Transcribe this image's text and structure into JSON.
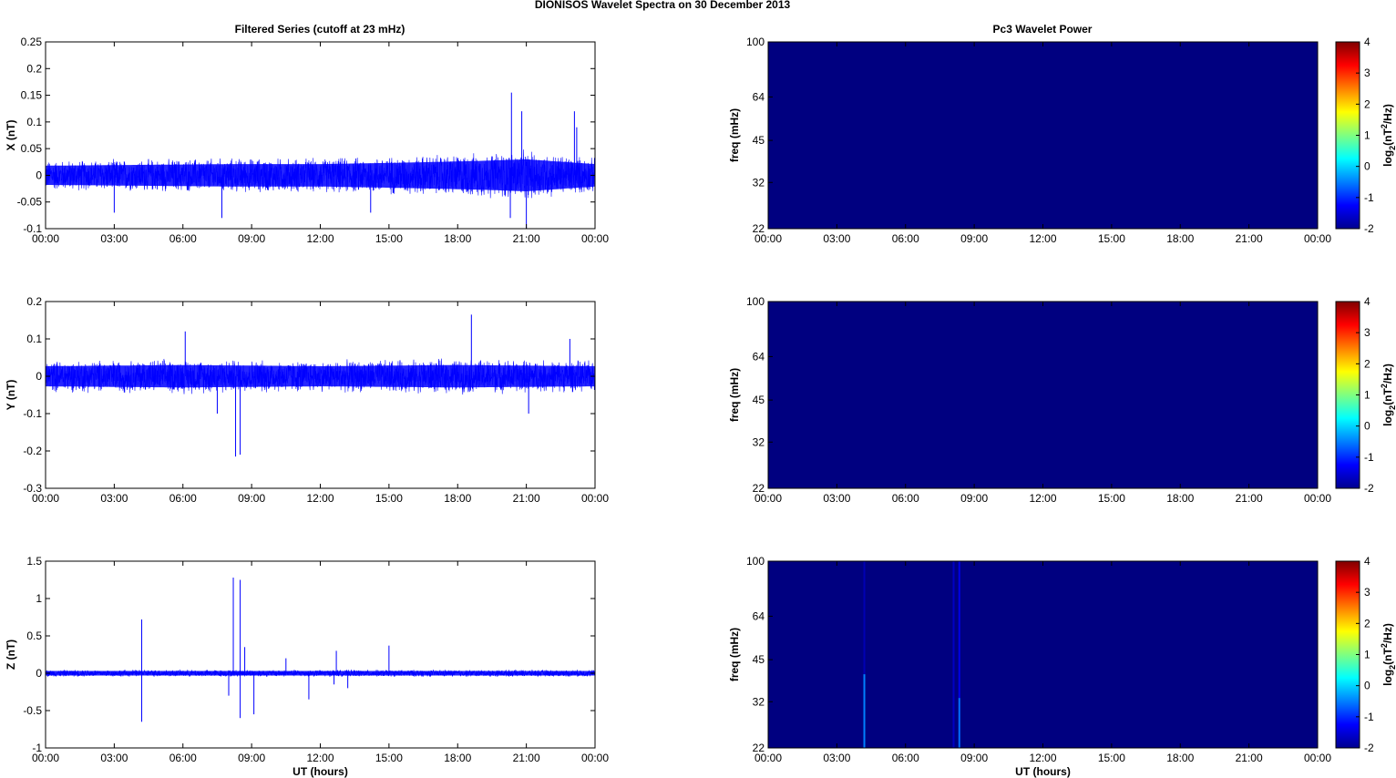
{
  "figure": {
    "suptitle": "DIONISOS Wavelet Spectra on 30 December  2013",
    "left_title": "Filtered Series (cutoff at 23 mHz)",
    "right_title": "Pc3 Wavelet Power",
    "xlabel": "UT (hours)"
  },
  "chart_data": [
    {
      "type": "line",
      "id": "x-series",
      "ylabel": "X (nT)",
      "ylim": [
        -0.1,
        0.25
      ],
      "yticks": [
        "0.25",
        "0.2",
        "0.15",
        "0.1",
        "0.05",
        "0",
        "-0.05",
        "-0.1"
      ],
      "xlim": [
        0,
        24
      ],
      "xticks": [
        "00:00",
        "03:00",
        "06:00",
        "09:00",
        "12:00",
        "15:00",
        "18:00",
        "21:00",
        "00:00"
      ],
      "series_color": "#0000ff",
      "noise_envelope": [
        [
          0,
          0.03
        ],
        [
          8,
          0.035
        ],
        [
          12,
          0.035
        ],
        [
          16,
          0.04
        ],
        [
          19,
          0.045
        ],
        [
          21,
          0.05
        ],
        [
          24,
          0.035
        ]
      ],
      "spikes": [
        [
          20.35,
          0.155
        ],
        [
          20.3,
          -0.08
        ],
        [
          20.8,
          0.12
        ],
        [
          21.0,
          -0.1
        ],
        [
          23.1,
          0.12
        ],
        [
          23.2,
          0.09
        ],
        [
          3.0,
          -0.07
        ],
        [
          7.7,
          -0.08
        ],
        [
          14.2,
          -0.07
        ]
      ]
    },
    {
      "type": "line",
      "id": "y-series",
      "ylabel": "Y (nT)",
      "ylim": [
        -0.3,
        0.2
      ],
      "yticks": [
        "0.2",
        "0.1",
        "0",
        "-0.1",
        "-0.2",
        "-0.3"
      ],
      "xlim": [
        0,
        24
      ],
      "xticks": [
        "00:00",
        "03:00",
        "06:00",
        "09:00",
        "12:00",
        "15:00",
        "18:00",
        "21:00",
        "00:00"
      ],
      "series_color": "#0000ff",
      "noise_envelope": [
        [
          0,
          0.045
        ],
        [
          6,
          0.05
        ],
        [
          12,
          0.045
        ],
        [
          18,
          0.05
        ],
        [
          24,
          0.045
        ]
      ],
      "spikes": [
        [
          8.3,
          -0.215
        ],
        [
          8.5,
          -0.21
        ],
        [
          18.6,
          0.165
        ],
        [
          6.1,
          0.12
        ],
        [
          7.5,
          -0.1
        ],
        [
          22.9,
          0.1
        ],
        [
          21.1,
          -0.1
        ]
      ]
    },
    {
      "type": "line",
      "id": "z-series",
      "ylabel": "Z (nT)",
      "ylim": [
        -1,
        1.5
      ],
      "yticks": [
        "1.5",
        "1",
        "0.5",
        "0",
        "-0.5",
        "-1"
      ],
      "xlim": [
        0,
        24
      ],
      "xticks": [
        "00:00",
        "03:00",
        "06:00",
        "09:00",
        "12:00",
        "15:00",
        "18:00",
        "21:00",
        "00:00"
      ],
      "xlabel": "UT (hours)",
      "series_color": "#0000ff",
      "noise_envelope": [
        [
          0,
          0.05
        ],
        [
          24,
          0.05
        ]
      ],
      "spikes": [
        [
          4.2,
          0.72
        ],
        [
          4.2,
          -0.65
        ],
        [
          8.2,
          1.28
        ],
        [
          8.5,
          1.25
        ],
        [
          8.5,
          -0.6
        ],
        [
          8.7,
          0.35
        ],
        [
          9.1,
          -0.55
        ],
        [
          8.0,
          -0.3
        ],
        [
          10.5,
          0.2
        ],
        [
          11.5,
          -0.35
        ],
        [
          12.7,
          0.3
        ],
        [
          12.6,
          -0.15
        ],
        [
          15.0,
          0.37
        ],
        [
          13.2,
          -0.2
        ]
      ]
    },
    {
      "type": "heatmap",
      "id": "x-wavelet",
      "ylabel": "freq (mHz)",
      "yticks": [
        "100",
        "64",
        "45",
        "32",
        "22"
      ],
      "xticks": [
        "00:00",
        "03:00",
        "06:00",
        "09:00",
        "12:00",
        "15:00",
        "18:00",
        "21:00",
        "00:00"
      ],
      "background_value": -2,
      "colorbar": {
        "label": "log2(nT2/Hz)",
        "range": [
          -2,
          4
        ],
        "ticks": [
          "4",
          "3",
          "2",
          "1",
          "0",
          "-1",
          "-2"
        ]
      },
      "features": []
    },
    {
      "type": "heatmap",
      "id": "y-wavelet",
      "ylabel": "freq (mHz)",
      "yticks": [
        "100",
        "64",
        "45",
        "32",
        "22"
      ],
      "xticks": [
        "00:00",
        "03:00",
        "06:00",
        "09:00",
        "12:00",
        "15:00",
        "18:00",
        "21:00",
        "00:00"
      ],
      "background_value": -2,
      "colorbar": {
        "label": "log2(nT2/Hz)",
        "range": [
          -2,
          4
        ],
        "ticks": [
          "4",
          "3",
          "2",
          "1",
          "0",
          "-1",
          "-2"
        ]
      },
      "features": []
    },
    {
      "type": "heatmap",
      "id": "z-wavelet",
      "ylabel": "freq (mHz)",
      "yticks": [
        "100",
        "64",
        "45",
        "32",
        "22"
      ],
      "xticks": [
        "00:00",
        "03:00",
        "06:00",
        "09:00",
        "12:00",
        "15:00",
        "18:00",
        "21:00",
        "00:00"
      ],
      "xlabel": "UT (hours)",
      "background_value": -2,
      "colorbar": {
        "label": "log2(nT2/Hz)",
        "range": [
          -2,
          4
        ],
        "ticks": [
          "4",
          "3",
          "2",
          "1",
          "0",
          "-1",
          "-2"
        ]
      },
      "features": [
        {
          "t": 4.2,
          "f_min": 22,
          "f_max": 40,
          "value": -0.5
        },
        {
          "t": 4.2,
          "f_min": 40,
          "f_max": 100,
          "value": -1.7
        },
        {
          "t": 8.1,
          "f_min": 22,
          "f_max": 100,
          "value": -1.6
        },
        {
          "t": 8.35,
          "f_min": 22,
          "f_max": 33,
          "value": -0.6
        },
        {
          "t": 8.35,
          "f_min": 33,
          "f_max": 100,
          "value": -1.4
        }
      ]
    }
  ]
}
